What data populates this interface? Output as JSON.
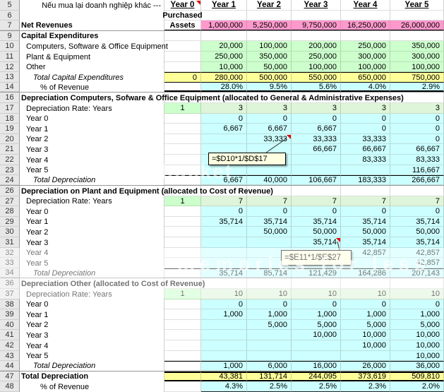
{
  "sheet": {
    "columns": [
      "Year 0",
      "Year 1",
      "Year 2",
      "Year 3",
      "Year 4",
      "Year 5"
    ],
    "rows": [
      {
        "num": "5",
        "kind": "yearhdr",
        "label": "Nếu mua lại doanh nghiệp khác ---",
        "y0": "Year 0",
        "cells": [
          "Year 1",
          "Year 2",
          "Year 3",
          "Year 4",
          "Year 5"
        ]
      },
      {
        "num": "6",
        "kind": "purchased",
        "label": "",
        "y0": "Purchased",
        "cells": [
          "",
          "",
          "",
          "",
          ""
        ]
      },
      {
        "num": "7",
        "kind": "netrev",
        "label": "Net Revenues",
        "y0": "Assets",
        "cells": [
          "1,000,000",
          "5,250,000",
          "9,750,000",
          "16,250,000",
          "26,000,000"
        ],
        "hidden_after": true
      },
      {
        "num": "9",
        "kind": "section",
        "label": "Capital Expenditures",
        "y0": "",
        "cells": [
          "",
          "",
          "",
          "",
          ""
        ]
      },
      {
        "num": "10",
        "kind": "capex",
        "label": "Computers, Software & Office Equipment",
        "y0": "",
        "cells": [
          "20,000",
          "100,000",
          "200,000",
          "250,000",
          "350,000"
        ]
      },
      {
        "num": "11",
        "kind": "capex",
        "label": "Plant & Equipment",
        "y0": "",
        "cells": [
          "250,000",
          "350,000",
          "250,000",
          "300,000",
          "300,000"
        ]
      },
      {
        "num": "12",
        "kind": "capex",
        "label": "Other",
        "y0": "",
        "cells": [
          "10,000",
          "50,000",
          "100,000",
          "100,000",
          "100,000"
        ]
      },
      {
        "num": "13",
        "kind": "totalcapex",
        "label": "Total Capital Expenditures",
        "y0": "0",
        "cells": [
          "280,000",
          "500,000",
          "550,000",
          "650,000",
          "750,000"
        ]
      },
      {
        "num": "14",
        "kind": "pct",
        "label": "% of Revenue",
        "y0": "",
        "cells": [
          "28.0%",
          "9.5%",
          "5.6%",
          "4.0%",
          "2.9%"
        ],
        "hidden_after": true
      },
      {
        "num": "16",
        "kind": "section",
        "label": "Depreciation Computers, Sofware & Office Equipment (allocated to General & Administrative Expenses)",
        "y0": "",
        "cells": [
          "",
          "",
          "",
          "",
          ""
        ]
      },
      {
        "num": "17",
        "kind": "rate",
        "label": "Depreciation Rate: Years",
        "y0": "1",
        "cells": [
          "3",
          "3",
          "3",
          "3",
          "3"
        ]
      },
      {
        "num": "18",
        "kind": "dep",
        "label": "Year 0",
        "y0": "",
        "cells": [
          "0",
          "0",
          "0",
          "0",
          "0"
        ]
      },
      {
        "num": "19",
        "kind": "dep",
        "label": "Year 1",
        "y0": "",
        "cells": [
          "6,667",
          "6,667",
          "6,667",
          "0",
          "0"
        ]
      },
      {
        "num": "20",
        "kind": "dep",
        "label": "Year 2",
        "y0": "",
        "cells": [
          "",
          "33,333",
          "33,333",
          "33,333",
          "0"
        ]
      },
      {
        "num": "21",
        "kind": "dep",
        "label": "Year 3",
        "y0": "",
        "cells": [
          "",
          "",
          "66,667",
          "66,667",
          "66,667"
        ]
      },
      {
        "num": "22",
        "kind": "dep",
        "label": "Year 4",
        "y0": "",
        "cells": [
          "",
          "",
          "",
          "83,333",
          "83,333"
        ]
      },
      {
        "num": "23",
        "kind": "dep",
        "label": "Year 5",
        "y0": "",
        "cells": [
          "",
          "",
          "",
          "",
          "116,667"
        ]
      },
      {
        "num": "24",
        "kind": "deptotal",
        "label": "Total Depreciation",
        "y0": "",
        "cells": [
          "6,667",
          "40,000",
          "106,667",
          "183,333",
          "266,667"
        ],
        "hidden_after": true
      },
      {
        "num": "26",
        "kind": "section",
        "label": "Depreciation on Plant and Equipment (allocated to Cost of Revenue)",
        "y0": "",
        "cells": [
          "",
          "",
          "",
          "",
          ""
        ]
      },
      {
        "num": "27",
        "kind": "rate",
        "label": "Depreciation Rate: Years",
        "y0": "1",
        "cells": [
          "7",
          "7",
          "7",
          "7",
          "7"
        ]
      },
      {
        "num": "28",
        "kind": "dep",
        "label": "Year 0",
        "y0": "",
        "cells": [
          "0",
          "0",
          "0",
          "0",
          "0"
        ]
      },
      {
        "num": "29",
        "kind": "dep",
        "label": "Year 1",
        "y0": "",
        "cells": [
          "35,714",
          "35,714",
          "35,714",
          "35,714",
          "35,714"
        ]
      },
      {
        "num": "30",
        "kind": "dep",
        "label": "Year 2",
        "y0": "",
        "cells": [
          "",
          "50,000",
          "50,000",
          "50,000",
          "50,000"
        ]
      },
      {
        "num": "31",
        "kind": "dep",
        "label": "Year 3",
        "y0": "",
        "cells": [
          "",
          "",
          "35,714",
          "35,714",
          "35,714"
        ]
      },
      {
        "num": "32",
        "kind": "dep",
        "label": "Year 4",
        "y0": "",
        "cells": [
          "",
          "",
          "",
          "42,857",
          "42,857"
        ]
      },
      {
        "num": "33",
        "kind": "dep",
        "label": "Year 5",
        "y0": "",
        "cells": [
          "",
          "",
          "",
          "",
          "42,857"
        ]
      },
      {
        "num": "34",
        "kind": "deptotal",
        "label": "Total Depreciation",
        "y0": "",
        "cells": [
          "35,714",
          "85,714",
          "121,429",
          "164,286",
          "207,143"
        ],
        "hidden_after": true
      },
      {
        "num": "36",
        "kind": "section",
        "label": "Depreciation Other (allocated to Cost of Revenue)",
        "y0": "",
        "cells": [
          "",
          "",
          "",
          "",
          ""
        ]
      },
      {
        "num": "37",
        "kind": "rate",
        "label": "Depreciation Rate: Years",
        "y0": "1",
        "cells": [
          "10",
          "10",
          "10",
          "10",
          "10"
        ]
      },
      {
        "num": "38",
        "kind": "dep",
        "label": "Year 0",
        "y0": "",
        "cells": [
          "0",
          "0",
          "0",
          "0",
          "0"
        ]
      },
      {
        "num": "39",
        "kind": "dep",
        "label": "Year 1",
        "y0": "",
        "cells": [
          "1,000",
          "1,000",
          "1,000",
          "1,000",
          "1,000"
        ]
      },
      {
        "num": "40",
        "kind": "dep",
        "label": "Year 2",
        "y0": "",
        "cells": [
          "",
          "5,000",
          "5,000",
          "5,000",
          "5,000"
        ]
      },
      {
        "num": "41",
        "kind": "dep",
        "label": "Year 3",
        "y0": "",
        "cells": [
          "",
          "",
          "10,000",
          "10,000",
          "10,000"
        ]
      },
      {
        "num": "42",
        "kind": "dep",
        "label": "Year 4",
        "y0": "",
        "cells": [
          "",
          "",
          "",
          "10,000",
          "10,000"
        ]
      },
      {
        "num": "43",
        "kind": "dep",
        "label": "Year 5",
        "y0": "",
        "cells": [
          "",
          "",
          "",
          "",
          "10,000"
        ]
      },
      {
        "num": "44",
        "kind": "deptotal",
        "label": "Total Depreciation",
        "y0": "",
        "cells": [
          "1,000",
          "6,000",
          "16,000",
          "26,000",
          "36,000"
        ],
        "hidden_after": true
      },
      {
        "num": "47",
        "kind": "grandtotal",
        "label": "Total Depreciation",
        "y0": "",
        "cells": [
          "43,381",
          "131,714",
          "244,095",
          "373,619",
          "509,810"
        ]
      },
      {
        "num": "48",
        "kind": "pct2",
        "label": "% of Revenue",
        "y0": "",
        "cells": [
          "4.3%",
          "2.5%",
          "2.5%",
          "2.3%",
          "2.0%"
        ]
      }
    ]
  },
  "comments": [
    {
      "formula": "=$D10*1/$D$17"
    },
    {
      "formula": "=$E11*1/$E$27"
    }
  ],
  "watermarks": {
    "w1": "photobucket",
    "w2": "our memories for less"
  },
  "colors": {
    "revenue_fill": "#FF99CC",
    "input_fill": "#CCFFCC",
    "rate_fill": "#DFF5D9",
    "total_fill": "#FFFF99",
    "calc_fill": "#CCFFFF",
    "comment_fill": "#FFFFE1",
    "comment_indicator": "#E40000"
  }
}
